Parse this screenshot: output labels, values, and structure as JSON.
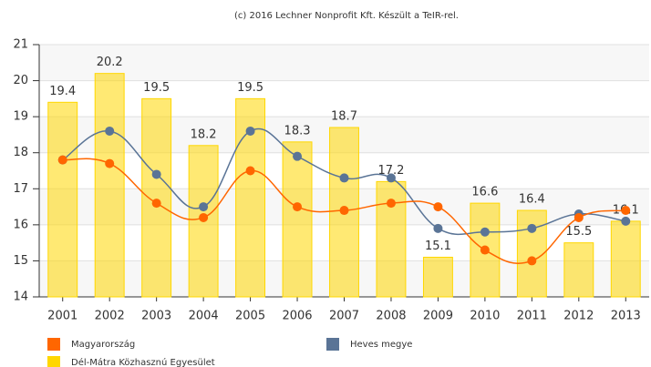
{
  "chart_data": {
    "type": "bar",
    "title": "(c) 2016 Lechner Nonprofit Kft. Készült a TeIR-rel.",
    "categories": [
      "2001",
      "2002",
      "2003",
      "2004",
      "2005",
      "2006",
      "2007",
      "2008",
      "2009",
      "2010",
      "2011",
      "2012",
      "2013"
    ],
    "series": [
      {
        "name": "Dél-Mátra Közhasznú Egyesület",
        "type": "bar",
        "color": "#ffd700",
        "values": [
          19.4,
          20.2,
          19.5,
          18.2,
          19.5,
          18.3,
          18.7,
          17.2,
          15.1,
          16.6,
          16.4,
          15.5,
          16.1
        ]
      },
      {
        "name": "Heves megye",
        "type": "line",
        "color": "#5a7496",
        "values": [
          17.8,
          18.6,
          17.4,
          16.5,
          18.6,
          17.9,
          17.3,
          17.3,
          15.9,
          15.8,
          15.9,
          16.3,
          16.1
        ]
      },
      {
        "name": "Magyarország",
        "type": "line",
        "color": "#ff6600",
        "values": [
          17.8,
          17.7,
          16.6,
          16.2,
          17.5,
          16.5,
          16.4,
          16.6,
          16.5,
          15.3,
          15.0,
          16.2,
          16.4
        ]
      }
    ],
    "ylim": [
      14,
      21
    ],
    "yticks": [
      14,
      15,
      16,
      17,
      18,
      19,
      20,
      21
    ],
    "grid": true
  }
}
